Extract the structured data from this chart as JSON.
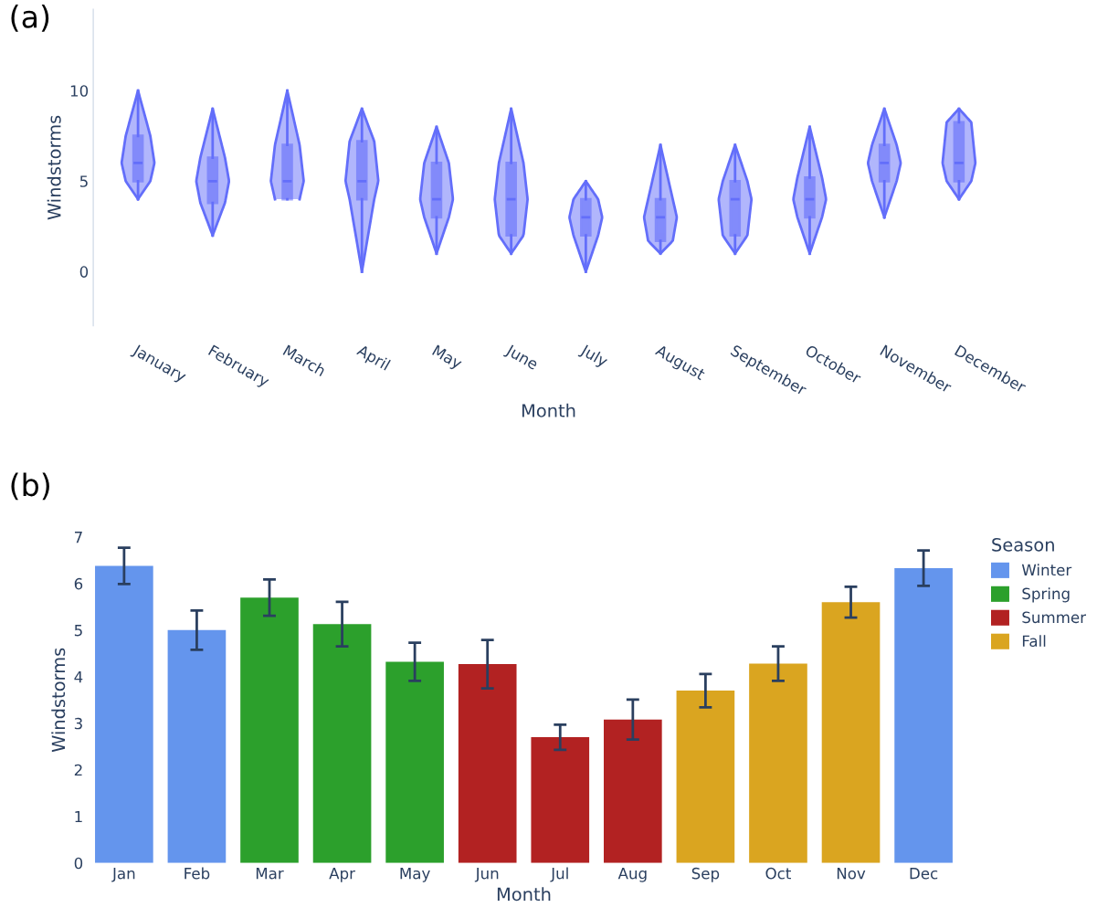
{
  "chart_data": [
    {
      "type": "box",
      "title": "(a)",
      "xlabel": "Month",
      "ylabel": "Windstorms",
      "color": "#636efa",
      "categories": [
        "January",
        "February",
        "March",
        "April",
        "May",
        "June",
        "July",
        "August",
        "September",
        "October",
        "November",
        "December"
      ],
      "boxes": [
        {
          "low": 4,
          "q1": 5,
          "median": 6,
          "q3": 7.5,
          "high": 10
        },
        {
          "low": 2,
          "q1": 3.8,
          "median": 5,
          "q3": 6.3,
          "high": 9
        },
        {
          "low": 4,
          "q1": 4,
          "median": 5,
          "q3": 7,
          "high": 10
        },
        {
          "low": 0,
          "q1": 4,
          "median": 5,
          "q3": 7.2,
          "high": 9
        },
        {
          "low": 1,
          "q1": 3,
          "median": 4,
          "q3": 6,
          "high": 8
        },
        {
          "low": 1,
          "q1": 2,
          "median": 4,
          "q3": 6,
          "high": 9
        },
        {
          "low": 0,
          "q1": 2,
          "median": 3,
          "q3": 4,
          "high": 5
        },
        {
          "low": 1,
          "q1": 1.7,
          "median": 3,
          "q3": 4,
          "high": 7
        },
        {
          "low": 1,
          "q1": 2,
          "median": 4,
          "q3": 5,
          "high": 7
        },
        {
          "low": 1,
          "q1": 3,
          "median": 4,
          "q3": 5.2,
          "high": 8
        },
        {
          "low": 3,
          "q1": 5,
          "median": 6,
          "q3": 7,
          "high": 9
        },
        {
          "low": 4,
          "q1": 5,
          "median": 6,
          "q3": 8.25,
          "high": 9
        }
      ],
      "ylim": [
        -3,
        14.5
      ],
      "yticks": [
        0,
        5,
        10
      ],
      "grid": false
    },
    {
      "type": "bar",
      "title": "(b)",
      "xlabel": "Month",
      "ylabel": "Windstorms",
      "legend_title": "Season",
      "legend": "top right",
      "categories": [
        "Jan",
        "Feb",
        "Mar",
        "Apr",
        "May",
        "Jun",
        "Jul",
        "Aug",
        "Sep",
        "Oct",
        "Nov",
        "Dec"
      ],
      "series": [
        {
          "name": "Winter",
          "color": "#6495ed",
          "values": [
            6.38,
            5.0,
            null,
            null,
            null,
            null,
            null,
            null,
            null,
            null,
            null,
            6.33
          ],
          "errors": [
            0.39,
            0.42,
            null,
            null,
            null,
            null,
            null,
            null,
            null,
            null,
            null,
            0.38
          ]
        },
        {
          "name": "Spring",
          "color": "#2ca02c",
          "values": [
            null,
            null,
            5.7,
            5.13,
            4.32,
            null,
            null,
            null,
            null,
            null,
            null,
            null
          ],
          "errors": [
            null,
            null,
            0.39,
            0.48,
            0.41,
            null,
            null,
            null,
            null,
            null,
            null,
            null
          ]
        },
        {
          "name": "Summer",
          "color": "#b22222",
          "values": [
            null,
            null,
            null,
            null,
            null,
            4.27,
            2.7,
            3.08,
            null,
            null,
            null,
            null
          ],
          "errors": [
            null,
            null,
            null,
            null,
            null,
            0.52,
            0.27,
            0.43,
            null,
            null,
            null,
            null
          ]
        },
        {
          "name": "Fall",
          "color": "#daa520",
          "values": [
            null,
            null,
            null,
            null,
            null,
            null,
            null,
            null,
            3.7,
            4.28,
            5.6,
            null
          ],
          "errors": [
            null,
            null,
            null,
            null,
            null,
            null,
            null,
            null,
            0.36,
            0.37,
            0.33,
            null
          ]
        }
      ],
      "ylim": [
        0,
        7
      ],
      "yticks": [
        0,
        1,
        2,
        3,
        4,
        5,
        6,
        7
      ],
      "grid": false
    }
  ]
}
